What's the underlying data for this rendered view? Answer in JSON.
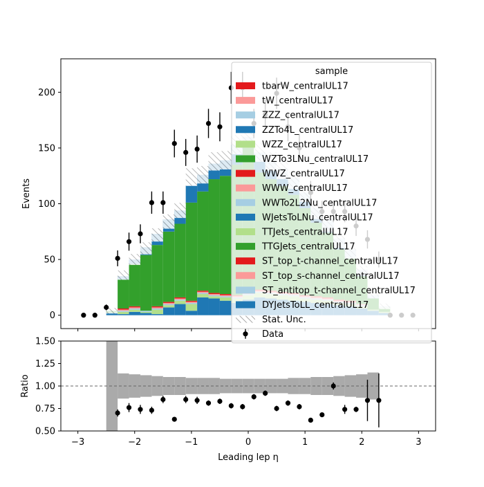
{
  "chart_data": [
    {
      "type": "bar",
      "stacked": true,
      "panel": "main",
      "xlabel": "",
      "ylabel": "Events",
      "ylim": [
        -12,
        230
      ],
      "yticks": [
        0,
        50,
        100,
        150,
        200
      ],
      "xlim": [
        -3.3,
        3.3
      ],
      "xticks": [
        -3,
        -2,
        -1,
        0,
        1,
        2,
        3
      ],
      "bin_edges": [
        -2.5,
        -2.3,
        -2.1,
        -1.9,
        -1.7,
        -1.5,
        -1.3,
        -1.1,
        -0.9,
        -0.7,
        -0.5,
        -0.3,
        -0.1,
        0.1,
        0.3,
        0.5,
        0.7,
        0.9,
        1.1,
        1.3,
        1.5,
        1.7,
        1.9,
        2.1,
        2.3,
        2.5
      ],
      "series": [
        {
          "name": "DYJetsToLL_centralUL17",
          "color": "#1f78b4",
          "values": [
            2,
            1,
            3,
            2,
            1,
            7,
            10,
            4,
            16,
            15,
            13,
            11,
            14,
            16,
            15,
            14,
            13,
            12,
            11,
            10,
            9,
            8,
            6,
            4,
            2
          ]
        },
        {
          "name": "ST_antitop_t-channel_centralUL17",
          "color": "#a6cee3",
          "values": [
            0,
            0,
            0,
            0,
            0,
            0,
            0,
            0,
            0,
            0,
            0,
            0,
            0,
            0,
            0,
            0,
            0,
            0,
            0,
            0,
            0,
            0,
            0,
            0,
            0
          ]
        },
        {
          "name": "ST_top_s-channel_centralUL17",
          "color": "#fb9a99",
          "values": [
            0,
            0,
            0,
            0,
            0,
            0,
            0,
            0,
            0,
            0,
            0,
            0,
            0,
            0,
            0,
            0,
            0,
            0,
            0,
            0,
            0,
            0,
            0,
            0,
            0
          ]
        },
        {
          "name": "ST_top_t-channel_centralUL17",
          "color": "#e31a1c",
          "values": [
            0,
            0,
            0,
            0,
            0,
            0,
            0,
            0,
            0,
            0,
            0,
            0,
            0,
            0,
            0,
            0,
            0,
            0,
            0,
            0,
            0,
            0,
            0,
            0,
            0
          ]
        },
        {
          "name": "TTGJets_centralUL17",
          "color": "#33a02c",
          "values": [
            0,
            0,
            0,
            0,
            0,
            0,
            0,
            0,
            0,
            0,
            0,
            0,
            0,
            0,
            0,
            0,
            0,
            0,
            0,
            0,
            0,
            0,
            0,
            0,
            0
          ]
        },
        {
          "name": "TTJets_centralUL17",
          "color": "#b2df8a",
          "values": [
            0,
            2,
            2,
            1,
            4,
            2,
            3,
            6,
            3,
            2,
            3,
            4,
            4,
            4,
            4,
            4,
            4,
            3,
            3,
            3,
            2,
            2,
            2,
            1,
            1
          ]
        },
        {
          "name": "WJetsToLNu_centralUL17",
          "color": "#1f78b4",
          "values": [
            0,
            0,
            0,
            0,
            0,
            0,
            0,
            0,
            0,
            0,
            0,
            0,
            0,
            0,
            0,
            0,
            0,
            0,
            0,
            0,
            0,
            0,
            0,
            0,
            0
          ]
        },
        {
          "name": "WWTo2L2Nu_centralUL17",
          "color": "#a6cee3",
          "values": [
            0,
            1,
            1,
            1,
            1,
            1,
            1,
            1,
            1,
            1,
            1,
            1,
            1,
            1,
            1,
            1,
            1,
            1,
            1,
            1,
            1,
            1,
            1,
            0,
            0
          ]
        },
        {
          "name": "WWW_centralUL17",
          "color": "#fb9a99",
          "values": [
            0,
            1,
            1,
            0,
            1,
            1,
            1,
            1,
            1,
            1,
            1,
            1,
            1,
            1,
            1,
            1,
            1,
            1,
            1,
            1,
            1,
            1,
            1,
            0,
            0
          ]
        },
        {
          "name": "WWZ_centralUL17",
          "color": "#e31a1c",
          "values": [
            0,
            1,
            1,
            0,
            1,
            1,
            1,
            1,
            1,
            1,
            1,
            1,
            1,
            1,
            1,
            1,
            1,
            1,
            1,
            1,
            1,
            1,
            0,
            0,
            0
          ]
        },
        {
          "name": "WZTo3LNu_centralUL17",
          "color": "#33a02c",
          "values": [
            2,
            26,
            38,
            50,
            55,
            63,
            66,
            88,
            89,
            102,
            106,
            117,
            136,
            105,
            100,
            95,
            88,
            78,
            66,
            58,
            45,
            38,
            25,
            10,
            4
          ]
        },
        {
          "name": "WZZ_centralUL17",
          "color": "#b2df8a",
          "values": [
            0,
            0,
            0,
            0,
            0,
            0,
            0,
            0,
            0,
            0,
            0,
            0,
            0,
            0,
            0,
            0,
            0,
            0,
            0,
            0,
            0,
            0,
            0,
            0,
            0
          ]
        },
        {
          "name": "ZZTo4L_centralUL17",
          "color": "#1f78b4",
          "values": [
            0,
            3,
            4,
            7,
            10,
            11,
            12,
            15,
            15,
            14,
            14,
            18,
            3,
            18,
            17,
            16,
            15,
            14,
            13,
            12,
            10,
            8,
            6,
            3,
            1
          ]
        },
        {
          "name": "ZZZ_centralUL17",
          "color": "#a6cee3",
          "values": [
            0,
            0,
            0,
            0,
            0,
            0,
            0,
            0,
            0,
            0,
            0,
            0,
            0,
            0,
            0,
            0,
            0,
            0,
            0,
            0,
            0,
            0,
            0,
            0,
            0
          ]
        },
        {
          "name": "tW_centralUL17",
          "color": "#fb9a99",
          "values": [
            0,
            0,
            0,
            0,
            0,
            0,
            0,
            0,
            0,
            0,
            0,
            0,
            0,
            0,
            0,
            0,
            0,
            0,
            0,
            0,
            0,
            0,
            0,
            0,
            0
          ]
        },
        {
          "name": "tbarW_centralUL17",
          "color": "#e31a1c",
          "values": [
            0,
            0,
            0,
            0,
            0,
            0,
            0,
            0,
            0,
            0,
            0,
            0,
            0,
            0,
            0,
            0,
            0,
            0,
            0,
            0,
            0,
            0,
            0,
            0,
            0
          ]
        }
      ],
      "stat_unc_totals": [
        4,
        36,
        50,
        60,
        72,
        84,
        94,
        124,
        126,
        138,
        139,
        153,
        160,
        146,
        138,
        130,
        121,
        109,
        93,
        81,
        66,
        56,
        40,
        18,
        8
      ],
      "data_points": {
        "name": "Data",
        "x": [
          -2.9,
          -2.7,
          -2.5,
          -2.3,
          -2.1,
          -1.9,
          -1.7,
          -1.5,
          -1.3,
          -1.1,
          -0.9,
          -0.7,
          -0.5,
          -0.3,
          -0.1,
          0.1,
          0.3,
          0.5,
          0.7,
          0.9,
          1.1,
          1.3,
          1.5,
          1.7,
          1.9,
          2.1,
          2.3,
          2.5,
          2.7,
          2.9
        ],
        "y": [
          0,
          0,
          7,
          51,
          66,
          73,
          101,
          101,
          154,
          146,
          149,
          172,
          169,
          204,
          204,
          172,
          180,
          199,
          169,
          150,
          110,
          93,
          93,
          93,
          80,
          68,
          50,
          0,
          0,
          0
        ],
        "err": [
          0,
          0,
          2.6,
          7.1,
          8.1,
          8.5,
          10,
          10,
          12.4,
          12.1,
          12.2,
          13.1,
          13,
          14.3,
          14.3,
          13.1,
          13.4,
          14.1,
          13,
          12.2,
          10.5,
          9.6,
          9.6,
          9.6,
          8.9,
          8.2,
          7.1,
          0,
          0,
          0
        ]
      },
      "legend": {
        "title": "sample",
        "placement": "upper right",
        "entries": [
          {
            "label": "tbarW_centralUL17",
            "color": "#e31a1c",
            "kind": "patch"
          },
          {
            "label": "tW_centralUL17",
            "color": "#fb9a99",
            "kind": "patch"
          },
          {
            "label": "ZZZ_centralUL17",
            "color": "#a6cee3",
            "kind": "patch"
          },
          {
            "label": "ZZTo4L_centralUL17",
            "color": "#1f78b4",
            "kind": "patch"
          },
          {
            "label": "WZZ_centralUL17",
            "color": "#b2df8a",
            "kind": "patch"
          },
          {
            "label": "WZTo3LNu_centralUL17",
            "color": "#33a02c",
            "kind": "patch"
          },
          {
            "label": "WWZ_centralUL17",
            "color": "#e31a1c",
            "kind": "patch"
          },
          {
            "label": "WWW_centralUL17",
            "color": "#fb9a99",
            "kind": "patch"
          },
          {
            "label": "WWTo2L2Nu_centralUL17",
            "color": "#a6cee3",
            "kind": "patch"
          },
          {
            "label": "WJetsToLNu_centralUL17",
            "color": "#1f78b4",
            "kind": "patch"
          },
          {
            "label": "TTJets_centralUL17",
            "color": "#b2df8a",
            "kind": "patch"
          },
          {
            "label": "TTGJets_centralUL17",
            "color": "#33a02c",
            "kind": "patch"
          },
          {
            "label": "ST_top_t-channel_centralUL17",
            "color": "#e31a1c",
            "kind": "patch"
          },
          {
            "label": "ST_top_s-channel_centralUL17",
            "color": "#fb9a99",
            "kind": "patch"
          },
          {
            "label": "ST_antitop_t-channel_centralUL17",
            "color": "#a6cee3",
            "kind": "patch"
          },
          {
            "label": "DYJetsToLL_centralUL17",
            "color": "#1f78b4",
            "kind": "patch"
          },
          {
            "label": "Stat. Unc.",
            "color": "#888888",
            "kind": "hatch"
          },
          {
            "label": "Data",
            "color": "#000000",
            "kind": "marker"
          }
        ]
      }
    },
    {
      "type": "scatter",
      "panel": "ratio",
      "xlabel": "Leading lep η",
      "ylabel": "Ratio",
      "ylim": [
        0.5,
        1.5
      ],
      "yticks": [
        0.5,
        0.75,
        1.0,
        1.25,
        1.5
      ],
      "ytick_labels": [
        "0.50",
        "0.75",
        "1.00",
        "1.25",
        "1.50"
      ],
      "xlim": [
        -3.3,
        3.3
      ],
      "xticks": [
        -3,
        -2,
        -1,
        0,
        1,
        2,
        3
      ],
      "reference_line": 1.0,
      "unc_band": {
        "bin_edges": [
          -2.5,
          -2.3,
          -2.1,
          -1.9,
          -1.7,
          -1.5,
          -1.3,
          -1.1,
          -0.9,
          -0.7,
          -0.5,
          -0.3,
          -0.1,
          0.1,
          0.3,
          0.5,
          0.7,
          0.9,
          1.1,
          1.3,
          1.5,
          1.7,
          1.9,
          2.1,
          2.3
        ],
        "half_width": [
          0.5,
          0.14,
          0.13,
          0.12,
          0.11,
          0.1,
          0.1,
          0.09,
          0.09,
          0.09,
          0.08,
          0.08,
          0.08,
          0.08,
          0.08,
          0.08,
          0.09,
          0.09,
          0.1,
          0.1,
          0.11,
          0.12,
          0.13,
          0.15
        ]
      },
      "x": [
        -2.3,
        -2.1,
        -1.9,
        -1.7,
        -1.5,
        -1.3,
        -1.1,
        -0.9,
        -0.7,
        -0.5,
        -0.3,
        -0.1,
        0.1,
        0.3,
        0.5,
        0.7,
        0.9,
        1.1,
        1.3,
        1.5,
        1.7,
        1.9,
        2.1,
        2.3
      ],
      "y": [
        0.7,
        0.76,
        0.74,
        0.73,
        0.85,
        0.63,
        0.85,
        0.84,
        0.81,
        0.83,
        0.78,
        0.77,
        0.88,
        0.92,
        0.75,
        0.81,
        0.77,
        0.62,
        0.68,
        1.0,
        0.74,
        0.74,
        0.84,
        0.84
      ],
      "err": [
        0.04,
        0.05,
        0.05,
        0.04,
        0.04,
        0.0,
        0.04,
        0.04,
        0.03,
        0.03,
        0.03,
        0.03,
        0.03,
        0.03,
        0.03,
        0.03,
        0.03,
        0.0,
        0.0,
        0.04,
        0.05,
        0.03,
        0.23,
        0.3
      ]
    }
  ]
}
